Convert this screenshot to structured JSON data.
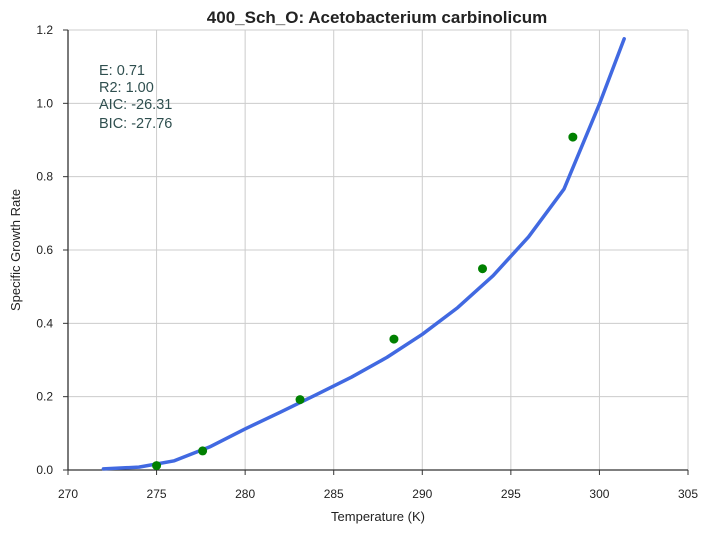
{
  "chart_data": {
    "type": "scatter",
    "title": "400_Sch_O: Acetobacterium carbinolicum",
    "xlabel": "Temperature (K)",
    "ylabel": "Specific Growth Rate",
    "xlim": [
      270,
      305
    ],
    "ylim": [
      0.0,
      1.2
    ],
    "x_ticks": [
      "270",
      "275",
      "280",
      "285",
      "290",
      "295",
      "300",
      "305"
    ],
    "y_ticks": [
      "0.0",
      "0.2",
      "0.4",
      "0.6",
      "0.8",
      "1.0",
      "1.2"
    ],
    "grid": true,
    "series": [
      {
        "type": "scatter",
        "color": "#008000",
        "x": [
          275.0,
          277.6,
          283.1,
          288.4,
          293.4,
          298.5
        ],
        "y": [
          0.012,
          0.052,
          0.192,
          0.357,
          0.549,
          0.908
        ]
      },
      {
        "type": "line",
        "color": "#4169e1",
        "x": [
          272.0,
          274.0,
          276.0,
          278.0,
          280.0,
          282.0,
          284.0,
          286.0,
          288.0,
          290.0,
          292.0,
          294.0,
          296.0,
          298.0,
          300.0,
          301.4
        ],
        "y": [
          0.003,
          0.008,
          0.025,
          0.063,
          0.112,
          0.158,
          0.205,
          0.253,
          0.307,
          0.37,
          0.443,
          0.53,
          0.636,
          0.766,
          0.998,
          1.176
        ]
      }
    ],
    "annotations": [
      "E:  0.71",
      "R2:  1.00",
      "AIC: -26.31",
      "BIC: -27.76"
    ]
  }
}
